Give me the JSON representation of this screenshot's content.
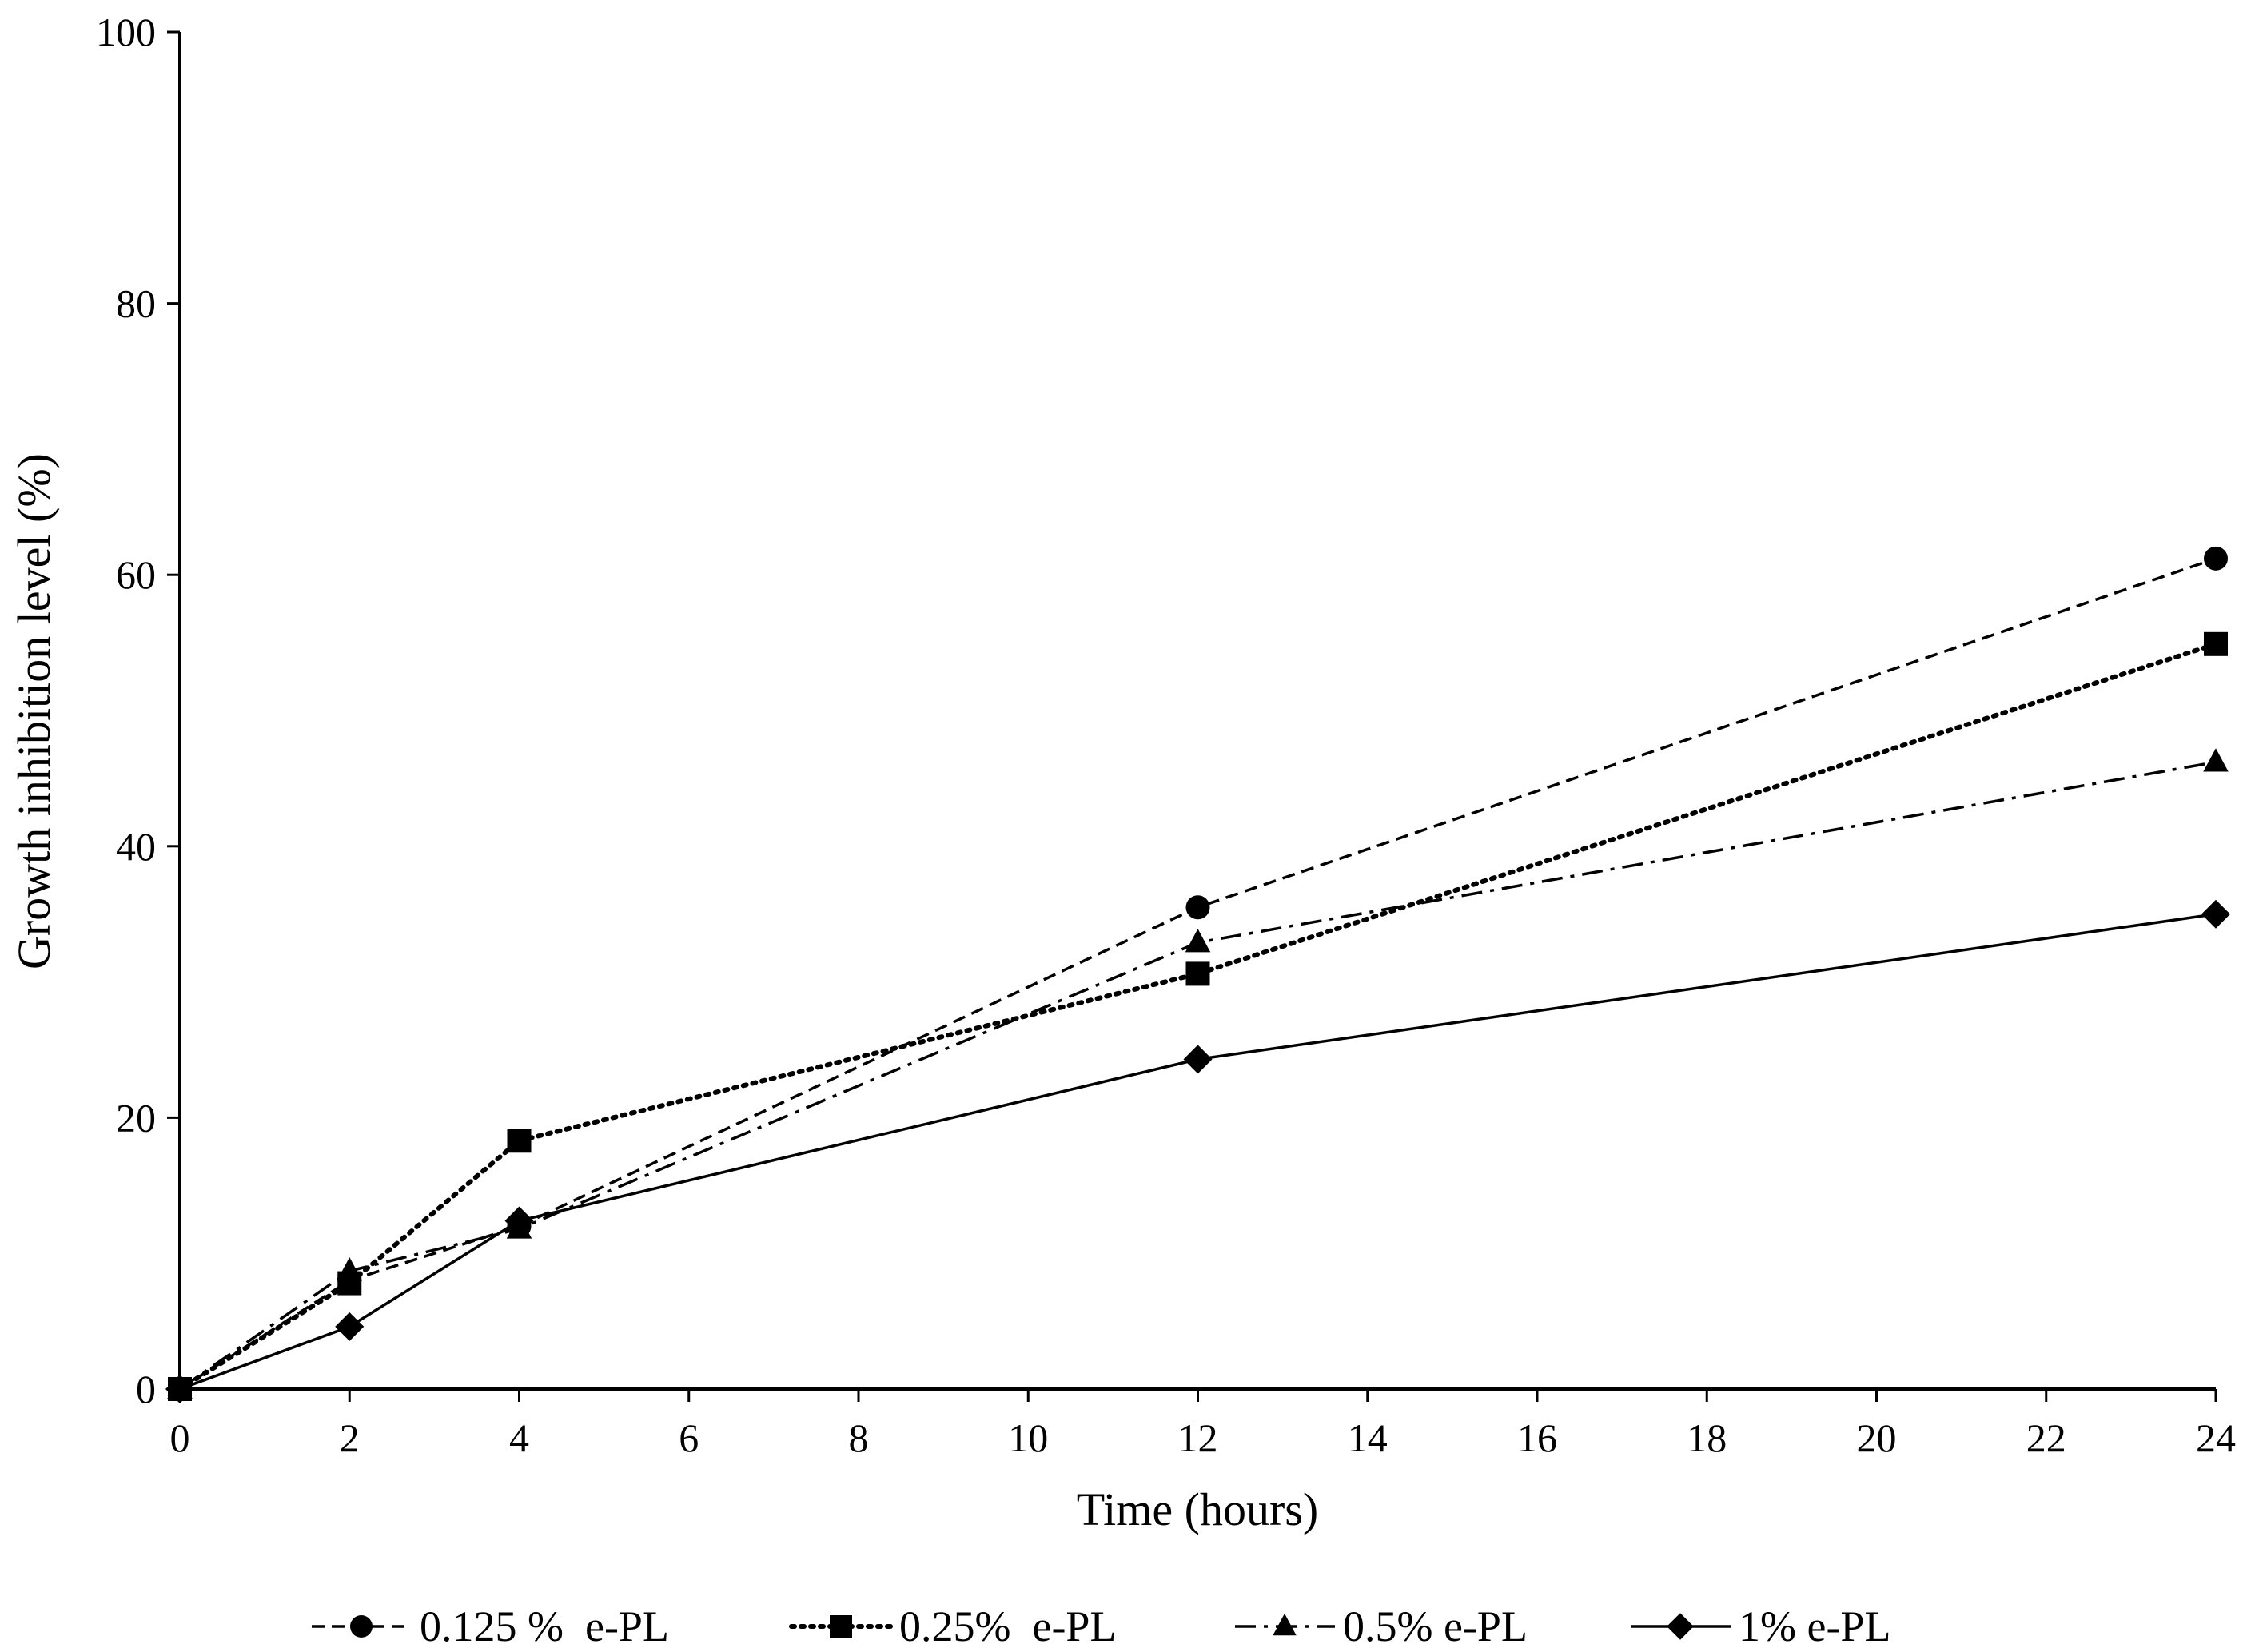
{
  "chart_data": {
    "type": "line",
    "title": "",
    "xlabel": "Time (hours)",
    "ylabel": "Growth inhibition level (%)",
    "xlim": [
      0,
      24
    ],
    "ylim": [
      0,
      100
    ],
    "x_ticks": [
      0,
      2,
      4,
      6,
      8,
      10,
      12,
      14,
      16,
      18,
      20,
      22,
      24
    ],
    "y_ticks": [
      0,
      20,
      40,
      60,
      80,
      100
    ],
    "x_tick_labels": [
      "0",
      "2",
      "4",
      "6",
      "8",
      "10",
      "12",
      "14",
      "16",
      "18",
      "20",
      "22",
      "24"
    ],
    "y_tick_labels": [
      "0",
      "20",
      "40",
      "60",
      "80",
      "100"
    ],
    "grid": false,
    "legend_position": "bottom",
    "x": [
      0,
      2,
      4,
      12,
      24
    ],
    "series": [
      {
        "name": "0.125 %  e-PL",
        "marker": "circle",
        "line_style": "dashed",
        "color": "#000000",
        "values": [
          0,
          8,
          12,
          35.5,
          61.2
        ]
      },
      {
        "name": "0.25%  e-PL",
        "marker": "square",
        "line_style": "dotted",
        "color": "#000000",
        "values": [
          0,
          7.8,
          18.3,
          30.6,
          54.9
        ]
      },
      {
        "name": "0.5% e-PL",
        "marker": "triangle",
        "line_style": "dash-dot",
        "color": "#000000",
        "values": [
          0,
          8.7,
          11.8,
          32.9,
          46.2
        ]
      },
      {
        "name": "1% e-PL",
        "marker": "diamond",
        "line_style": "solid",
        "color": "#000000",
        "values": [
          0,
          4.6,
          12.4,
          24.3,
          35
        ]
      }
    ]
  }
}
